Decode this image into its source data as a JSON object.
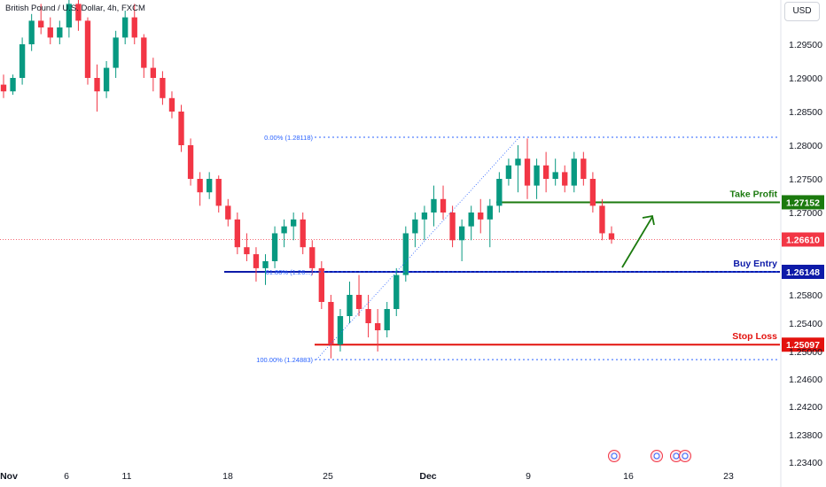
{
  "header": {
    "title": "British Pound / U.S. Dollar, 4h, FXCM",
    "currency": "USD"
  },
  "colors": {
    "up": "#089981",
    "down": "#f23645",
    "take_profit": "#1b7a0e",
    "buy_entry": "#0d1aa8",
    "stop_loss": "#e3130f",
    "current_price": "#f23645",
    "fib": "#2962ff"
  },
  "chart_data": {
    "type": "candlestick",
    "symbol": "GBPUSD",
    "timeframe": "4h",
    "y_ticks": [
      1.234,
      1.238,
      1.242,
      1.246,
      1.25,
      1.254,
      1.258,
      1.27,
      1.275,
      1.28,
      1.285,
      1.29,
      1.295
    ],
    "y_tick_labels": [
      "1.23400",
      "1.23800",
      "1.24200",
      "1.24600",
      "1.25000",
      "1.25400",
      "1.25800",
      "1.27000",
      "1.27500",
      "1.28000",
      "1.28500",
      "1.29000",
      "1.29500"
    ],
    "x_ticks": [
      "Nov",
      "6",
      "11",
      "18",
      "25",
      "Dec",
      "9",
      "16",
      "23"
    ],
    "levels": [
      {
        "label": "Take Profit",
        "value": 1.27152,
        "value_label": "1.27152"
      },
      {
        "label": "Buy Entry",
        "value": 1.26148,
        "value_label": "1.26148"
      },
      {
        "label": "Stop Loss",
        "value": 1.25097,
        "value_label": "1.25097"
      }
    ],
    "current_price": {
      "value": 1.2661,
      "label": "1.26610"
    },
    "fibonacci": [
      {
        "label": "0.00% (1.28118)",
        "value": 1.28118
      },
      {
        "label": "61.80% (1.26...)",
        "value": 1.2615
      },
      {
        "label": "100.00% (1.24883)",
        "value": 1.24883
      }
    ],
    "annotations": [
      "projected upward arrow from Buy Entry toward Take Profit"
    ],
    "ohlc_approx": [
      [
        1.289,
        1.2905,
        1.287,
        1.288
      ],
      [
        1.288,
        1.2905,
        1.2875,
        1.29
      ],
      [
        1.29,
        1.296,
        1.289,
        1.295
      ],
      [
        1.295,
        1.2995,
        1.294,
        1.2985
      ],
      [
        1.2985,
        1.301,
        1.2965,
        1.2975
      ],
      [
        1.2975,
        1.299,
        1.295,
        1.296
      ],
      [
        1.296,
        1.2985,
        1.295,
        1.2975
      ],
      [
        1.2975,
        1.302,
        1.296,
        1.301
      ],
      [
        1.301,
        1.303,
        1.297,
        1.2985
      ],
      [
        1.2985,
        1.299,
        1.289,
        1.29
      ],
      [
        1.29,
        1.292,
        1.285,
        1.288
      ],
      [
        1.288,
        1.2925,
        1.287,
        1.2915
      ],
      [
        1.2915,
        1.297,
        1.29,
        1.296
      ],
      [
        1.296,
        1.3,
        1.295,
        1.299
      ],
      [
        1.299,
        1.301,
        1.295,
        1.296
      ],
      [
        1.296,
        1.2965,
        1.29,
        1.2915
      ],
      [
        1.2915,
        1.293,
        1.288,
        1.29
      ],
      [
        1.29,
        1.291,
        1.286,
        1.287
      ],
      [
        1.287,
        1.288,
        1.284,
        1.285
      ],
      [
        1.285,
        1.286,
        1.279,
        1.28
      ],
      [
        1.28,
        1.281,
        1.274,
        1.275
      ],
      [
        1.275,
        1.276,
        1.271,
        1.273
      ],
      [
        1.273,
        1.276,
        1.272,
        1.275
      ],
      [
        1.275,
        1.2755,
        1.27,
        1.271
      ],
      [
        1.271,
        1.272,
        1.268,
        1.269
      ],
      [
        1.269,
        1.27,
        1.264,
        1.265
      ],
      [
        1.265,
        1.267,
        1.263,
        1.264
      ],
      [
        1.264,
        1.265,
        1.26,
        1.262
      ],
      [
        1.262,
        1.264,
        1.2595,
        1.263
      ],
      [
        1.263,
        1.268,
        1.262,
        1.267
      ],
      [
        1.267,
        1.269,
        1.265,
        1.268
      ],
      [
        1.268,
        1.27,
        1.266,
        1.269
      ],
      [
        1.269,
        1.27,
        1.264,
        1.265
      ],
      [
        1.265,
        1.266,
        1.261,
        1.262
      ],
      [
        1.262,
        1.263,
        1.256,
        1.257
      ],
      [
        1.257,
        1.258,
        1.249,
        1.251
      ],
      [
        1.251,
        1.256,
        1.25,
        1.255
      ],
      [
        1.255,
        1.26,
        1.254,
        1.258
      ],
      [
        1.258,
        1.261,
        1.255,
        1.256
      ],
      [
        1.256,
        1.258,
        1.252,
        1.254
      ],
      [
        1.254,
        1.256,
        1.25,
        1.253
      ],
      [
        1.253,
        1.257,
        1.252,
        1.256
      ],
      [
        1.256,
        1.262,
        1.255,
        1.261
      ],
      [
        1.261,
        1.268,
        1.26,
        1.267
      ],
      [
        1.267,
        1.27,
        1.265,
        1.269
      ],
      [
        1.269,
        1.271,
        1.266,
        1.27
      ],
      [
        1.27,
        1.274,
        1.268,
        1.272
      ],
      [
        1.272,
        1.274,
        1.269,
        1.27
      ],
      [
        1.27,
        1.271,
        1.265,
        1.266
      ],
      [
        1.266,
        1.269,
        1.263,
        1.268
      ],
      [
        1.268,
        1.271,
        1.266,
        1.27
      ],
      [
        1.27,
        1.272,
        1.267,
        1.269
      ],
      [
        1.269,
        1.272,
        1.265,
        1.271
      ],
      [
        1.271,
        1.276,
        1.27,
        1.275
      ],
      [
        1.275,
        1.278,
        1.274,
        1.277
      ],
      [
        1.277,
        1.28,
        1.273,
        1.278
      ],
      [
        1.278,
        1.281,
        1.272,
        1.274
      ],
      [
        1.274,
        1.278,
        1.272,
        1.277
      ],
      [
        1.277,
        1.279,
        1.273,
        1.275
      ],
      [
        1.275,
        1.278,
        1.274,
        1.276
      ],
      [
        1.276,
        1.277,
        1.273,
        1.274
      ],
      [
        1.274,
        1.279,
        1.273,
        1.278
      ],
      [
        1.278,
        1.279,
        1.274,
        1.275
      ],
      [
        1.275,
        1.276,
        1.27,
        1.271
      ],
      [
        1.271,
        1.272,
        1.266,
        1.267
      ],
      [
        1.267,
        1.268,
        1.2655,
        1.2661
      ]
    ]
  }
}
